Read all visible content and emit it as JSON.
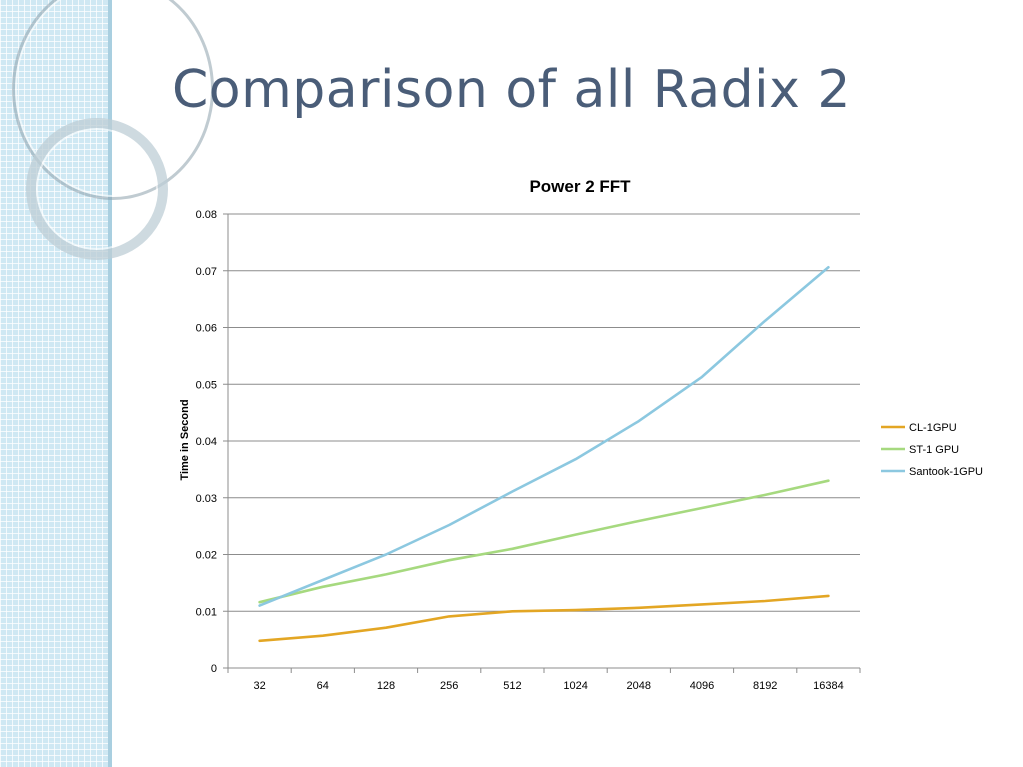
{
  "slide": {
    "title": "Comparison of all Radix 2"
  },
  "chart_data": {
    "type": "line",
    "title": "Power 2 FFT",
    "xlabel": "",
    "ylabel": "Time in Second",
    "categories": [
      "32",
      "64",
      "128",
      "256",
      "512",
      "1024",
      "2048",
      "4096",
      "8192",
      "16384"
    ],
    "yticks": [
      "0",
      "0.01",
      "0.02",
      "0.03",
      "0.04",
      "0.05",
      "0.06",
      "0.07",
      "0.08"
    ],
    "ylim": [
      0,
      0.08
    ],
    "grid": true,
    "legend_position": "right",
    "series": [
      {
        "name": "CL-1GPU",
        "color": "#e3a624",
        "values": [
          0.0048,
          0.0057,
          0.0071,
          0.0091,
          0.01,
          0.0102,
          0.0106,
          0.0112,
          0.0118,
          0.0127
        ]
      },
      {
        "name": "ST-1 GPU",
        "color": "#a6d97f",
        "values": [
          0.0116,
          0.0143,
          0.0165,
          0.019,
          0.021,
          0.0235,
          0.0259,
          0.0282,
          0.0305,
          0.033
        ]
      },
      {
        "name": "Santook-1GPU",
        "color": "#8cc8e0",
        "values": [
          0.011,
          0.0155,
          0.02,
          0.0252,
          0.0311,
          0.0368,
          0.0435,
          0.0513,
          0.0612,
          0.0706
        ]
      }
    ]
  }
}
